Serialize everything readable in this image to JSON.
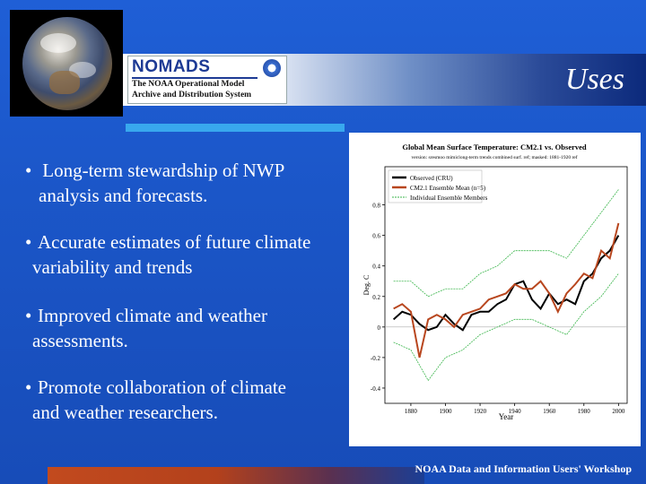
{
  "header": {
    "logo_title": "NOMADS",
    "logo_subtitle_line1": "The NOAA Operational Model",
    "logo_subtitle_line2": "Archive and Distribution System",
    "slide_title": "Uses"
  },
  "bullets": [
    {
      "marker": "•",
      "line1": " Long-term stewardship of NWP",
      "line2": "analysis and forecasts."
    },
    {
      "marker": "•",
      "line1": "Accurate estimates of future climate",
      "line2": "variability and trends"
    },
    {
      "marker": "•",
      "line1": "Improved climate and weather",
      "line2": "assessments."
    },
    {
      "marker": "•",
      "line1": "Promote collaboration of climate",
      "line2": "and weather researchers."
    }
  ],
  "footer": "NOAA Data and Information Users' Workshop",
  "colors": {
    "background": "#1b56c8",
    "accent_line": "#38a8ee",
    "observed": "#000000",
    "ensemble_mean": "#b8461e",
    "ensemble_members": "#39b54a"
  },
  "chart_data": {
    "type": "line",
    "title": "Global Mean Surface Temperature: CM2.1 vs. Observed",
    "subtitle": "version: sresmoo mimiclong-term trends combined surf. ref; masked: 1881-1920 ref",
    "xlabel": "Year",
    "ylabel": "Deg. C",
    "xlim": [
      1865,
      2005
    ],
    "ylim": [
      -0.5,
      1.05
    ],
    "x_ticks": [
      1880,
      1900,
      1920,
      1940,
      1960,
      1980,
      2000
    ],
    "y_ticks": [
      -0.4,
      -0.2,
      0,
      0.2,
      0.4,
      0.6,
      0.8
    ],
    "y_tick_labels": [
      "-0.4",
      "-0.2",
      "0",
      "0.2",
      "0.4",
      "0.6",
      "0.8"
    ],
    "legend": {
      "placement": "top-left",
      "entries": [
        "Observed (CRU)",
        "CM2.1 Ensemble Mean (n=5)",
        "Individual Ensemble Members"
      ]
    },
    "series": [
      {
        "name": "Observed (CRU)",
        "x": [
          1870,
          1875,
          1880,
          1885,
          1890,
          1895,
          1900,
          1905,
          1910,
          1915,
          1920,
          1925,
          1930,
          1935,
          1940,
          1945,
          1950,
          1955,
          1960,
          1965,
          1970,
          1975,
          1980,
          1985,
          1990,
          1995,
          2000
        ],
        "values": [
          0.05,
          0.1,
          0.08,
          0.02,
          -0.02,
          0.0,
          0.08,
          0.02,
          -0.02,
          0.08,
          0.1,
          0.1,
          0.15,
          0.18,
          0.28,
          0.3,
          0.18,
          0.12,
          0.22,
          0.15,
          0.18,
          0.15,
          0.3,
          0.35,
          0.45,
          0.5,
          0.6
        ]
      },
      {
        "name": "CM2.1 Ensemble Mean (n=5)",
        "x": [
          1870,
          1875,
          1880,
          1885,
          1890,
          1895,
          1900,
          1905,
          1910,
          1915,
          1920,
          1925,
          1930,
          1935,
          1940,
          1945,
          1950,
          1955,
          1960,
          1965,
          1970,
          1975,
          1980,
          1985,
          1990,
          1995,
          2000
        ],
        "values": [
          0.12,
          0.15,
          0.1,
          -0.2,
          0.05,
          0.08,
          0.05,
          0.0,
          0.08,
          0.1,
          0.12,
          0.18,
          0.2,
          0.22,
          0.28,
          0.25,
          0.25,
          0.3,
          0.22,
          0.1,
          0.22,
          0.28,
          0.35,
          0.32,
          0.5,
          0.45,
          0.68
        ]
      },
      {
        "name": "Individual Ensemble Members",
        "x": [
          1870,
          1880,
          1890,
          1900,
          1910,
          1920,
          1930,
          1940,
          1950,
          1960,
          1970,
          1980,
          1990,
          2000
        ],
        "values_high": [
          0.3,
          0.3,
          0.2,
          0.25,
          0.25,
          0.35,
          0.4,
          0.5,
          0.5,
          0.5,
          0.45,
          0.6,
          0.75,
          0.9
        ],
        "values_low": [
          -0.1,
          -0.15,
          -0.35,
          -0.2,
          -0.15,
          -0.05,
          0.0,
          0.05,
          0.05,
          0.0,
          -0.05,
          0.1,
          0.2,
          0.35
        ]
      }
    ]
  }
}
